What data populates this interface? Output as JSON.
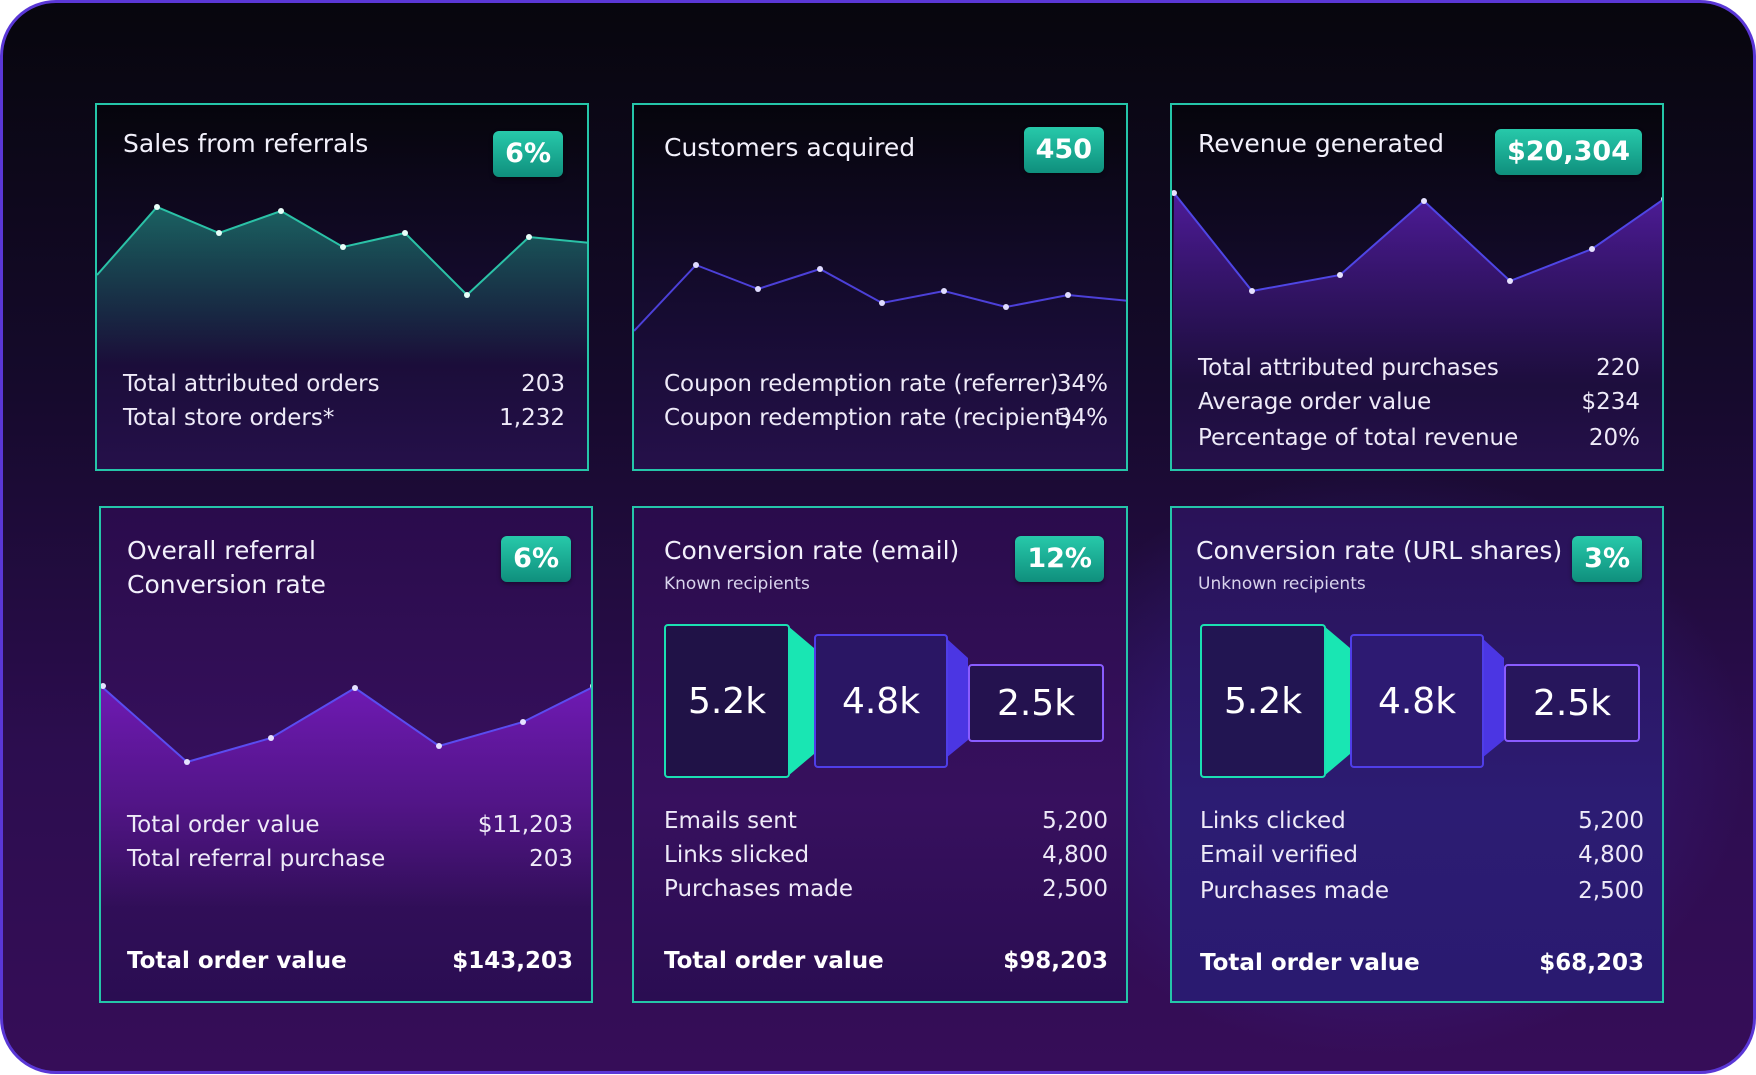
{
  "colors": {
    "accent": "#25c6a9",
    "purple": "#7b5bff",
    "frame": "#5a37d6"
  },
  "cards": [
    {
      "title": "Sales from referrals",
      "badge": "6%",
      "rows": [
        {
          "label": "Total attributed orders",
          "value": "203"
        },
        {
          "label": "Total store orders*",
          "value": "1,232"
        }
      ]
    },
    {
      "title": "Customers acquired",
      "badge": "450",
      "rows": [
        {
          "label": "Coupon redemption rate (referrer)",
          "value": "34%"
        },
        {
          "label": "Coupon redemption rate (recipient)",
          "value": "34%"
        }
      ]
    },
    {
      "title": "Revenue generated",
      "badge": "$20,304",
      "rows": [
        {
          "label": "Total attributed purchases",
          "value": "220"
        },
        {
          "label": "Average order value",
          "value": "$234"
        },
        {
          "label": "Percentage of total revenue",
          "value": "20%"
        }
      ]
    },
    {
      "title_line1": "Overall referral",
      "title_line2": "Conversion rate",
      "badge": "6%",
      "rows": [
        {
          "label": "Total order value",
          "value": "$11,203"
        },
        {
          "label": "Total referral purchase",
          "value": "203"
        }
      ],
      "total": {
        "label": "Total order value",
        "value": "$143,203"
      }
    },
    {
      "title": "Conversion rate (email)",
      "subtitle": "Known recipients",
      "badge": "12%",
      "funnel": [
        "5.2k",
        "4.8k",
        "2.5k"
      ],
      "rows": [
        {
          "label": "Emails sent",
          "value": "5,200"
        },
        {
          "label": "Links slicked",
          "value": "4,800"
        },
        {
          "label": "Purchases made",
          "value": "2,500"
        }
      ],
      "total": {
        "label": "Total order value",
        "value": "$98,203"
      }
    },
    {
      "title": "Conversion rate (URL shares)",
      "subtitle": "Unknown recipients",
      "badge": "3%",
      "funnel": [
        "5.2k",
        "4.8k",
        "2.5k"
      ],
      "rows": [
        {
          "label": "Links clicked",
          "value": "5,200"
        },
        {
          "label": "Email verified",
          "value": "4,800"
        },
        {
          "label": "Purchases made",
          "value": "2,500"
        }
      ],
      "total": {
        "label": "Total order value",
        "value": "$68,203"
      }
    }
  ]
}
